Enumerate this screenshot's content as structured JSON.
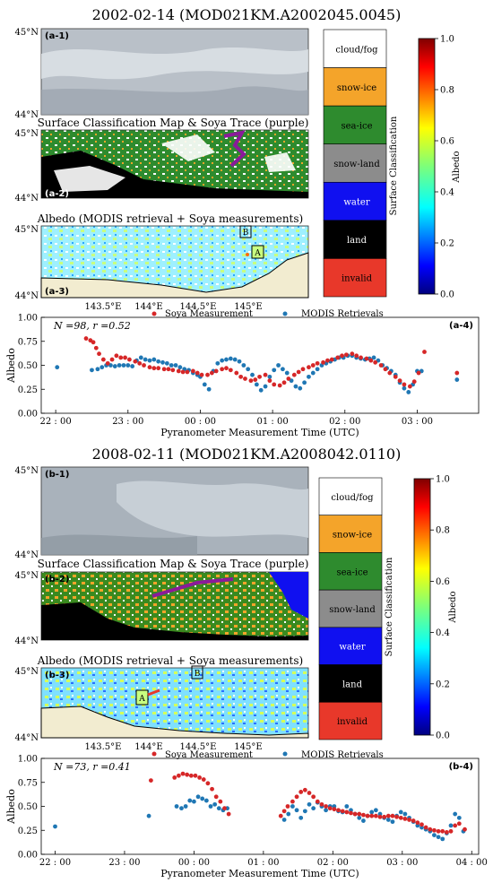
{
  "panel_a": {
    "title": "2002-02-14 (MOD021KM.A2002045.0045)",
    "labels": {
      "a1": "(a-1)",
      "a2": "(a-2)",
      "a3": "(a-3)",
      "a4": "(a-4)"
    },
    "map2_title": "Surface Classification Map & Soya Trace (purple)",
    "map3_title": "Albedo (MODIS retrieval + Soya measurements)",
    "lat_top": "45°N",
    "lat_bottom": "44°N",
    "lon_ticks": [
      "143.5°E",
      "144°E",
      "144.5°E",
      "145°E"
    ],
    "box_a": "A",
    "box_b": "B",
    "stats": "N =98, r =0.52"
  },
  "panel_b": {
    "title": "2008-02-11 (MOD021KM.A2008042.0110)",
    "labels": {
      "b1": "(b-1)",
      "b2": "(b-2)",
      "b3": "(b-3)",
      "b4": "(b-4)"
    },
    "map2_title": "Surface Classification Map & Soya Trace (purple)",
    "map3_title": "Albedo (MODIS retrieval + Soya measurements)",
    "lat_top": "45°N",
    "lat_bottom": "44°N",
    "lon_ticks": [
      "143.5°E",
      "144°E",
      "144.5°E",
      "145°E"
    ],
    "box_a": "A",
    "box_b": "B",
    "stats": "N =73, r =0.41"
  },
  "classification_legend": {
    "title": "Surface Classification",
    "items": [
      {
        "label": "cloud/fog",
        "color": "#ffffff"
      },
      {
        "label": "snow-ice",
        "color": "#f4a42a"
      },
      {
        "label": "sea-ice",
        "color": "#2e8b2e"
      },
      {
        "label": "snow-land",
        "color": "#8c8c8c"
      },
      {
        "label": "water",
        "color": "#1010f0"
      },
      {
        "label": "land",
        "color": "#000000"
      },
      {
        "label": "invalid",
        "color": "#e8382a"
      }
    ]
  },
  "albedo_colorbar": {
    "title": "Albedo",
    "ticks": [
      "0.0",
      "0.2",
      "0.4",
      "0.6",
      "0.8",
      "1.0"
    ]
  },
  "legend": {
    "soya": "Soya Measurement",
    "modis": "MODIS Retrievals",
    "soya_color": "#d62728",
    "modis_color": "#1f77b4"
  },
  "chart_data": [
    {
      "type": "scatter",
      "id": "a-4",
      "xlabel": "Pyranometer Measurement Time (UTC)",
      "ylabel": "Albedo",
      "xticks": [
        "22 : 00",
        "23 : 00",
        "00 : 00",
        "01 : 00",
        "02 : 00",
        "03 : 00"
      ],
      "yticks": [
        "0.00",
        "0.25",
        "0.50",
        "0.75",
        "1.00"
      ],
      "xlim_hours_after_2200": [
        -0.2,
        5.85
      ],
      "ylim": [
        0,
        1
      ],
      "series": [
        {
          "name": "Soya Measurement",
          "x": [
            0.42,
            0.48,
            0.52,
            0.56,
            0.6,
            0.66,
            0.72,
            0.78,
            0.84,
            0.9,
            0.96,
            1.02,
            1.1,
            1.16,
            1.22,
            1.3,
            1.36,
            1.42,
            1.5,
            1.56,
            1.62,
            1.7,
            1.76,
            1.82,
            1.9,
            1.96,
            2.02,
            2.1,
            2.16,
            2.22,
            2.3,
            2.36,
            2.42,
            2.5,
            2.56,
            2.62,
            2.7,
            2.76,
            2.82,
            2.9,
            2.96,
            3.02,
            3.1,
            3.16,
            3.22,
            3.3,
            3.36,
            3.42,
            3.5,
            3.56,
            3.62,
            3.7,
            3.76,
            3.82,
            3.9,
            3.96,
            4.02,
            4.1,
            4.16,
            4.22,
            4.3,
            4.36,
            4.42,
            4.5,
            4.56,
            4.62,
            4.7,
            4.76,
            4.82,
            4.9,
            4.96,
            5.02,
            5.1,
            5.55
          ],
          "y": [
            0.78,
            0.76,
            0.74,
            0.68,
            0.62,
            0.56,
            0.52,
            0.56,
            0.6,
            0.58,
            0.58,
            0.56,
            0.54,
            0.52,
            0.5,
            0.48,
            0.47,
            0.47,
            0.46,
            0.46,
            0.45,
            0.44,
            0.43,
            0.43,
            0.44,
            0.42,
            0.4,
            0.4,
            0.42,
            0.44,
            0.46,
            0.47,
            0.45,
            0.42,
            0.38,
            0.36,
            0.34,
            0.35,
            0.38,
            0.4,
            0.34,
            0.3,
            0.29,
            0.32,
            0.36,
            0.4,
            0.43,
            0.46,
            0.48,
            0.5,
            0.52,
            0.53,
            0.55,
            0.56,
            0.58,
            0.6,
            0.61,
            0.62,
            0.6,
            0.58,
            0.57,
            0.55,
            0.53,
            0.5,
            0.46,
            0.42,
            0.38,
            0.34,
            0.3,
            0.28,
            0.33,
            0.42,
            0.64,
            0.42
          ]
        },
        {
          "name": "MODIS Retrievals",
          "x": [
            0.02,
            0.5,
            0.58,
            0.64,
            0.7,
            0.76,
            0.82,
            0.88,
            0.94,
            1.0,
            1.06,
            1.12,
            1.18,
            1.24,
            1.3,
            1.36,
            1.42,
            1.48,
            1.54,
            1.6,
            1.66,
            1.72,
            1.78,
            1.84,
            1.9,
            1.96,
            2.0,
            2.06,
            2.12,
            2.18,
            2.24,
            2.3,
            2.36,
            2.42,
            2.48,
            2.54,
            2.6,
            2.66,
            2.72,
            2.78,
            2.84,
            2.9,
            2.96,
            3.02,
            3.08,
            3.14,
            3.2,
            3.26,
            3.32,
            3.38,
            3.44,
            3.5,
            3.56,
            3.62,
            3.68,
            3.74,
            3.8,
            3.86,
            3.92,
            3.98,
            4.04,
            4.1,
            4.16,
            4.22,
            4.28,
            4.34,
            4.4,
            4.46,
            4.52,
            4.58,
            4.64,
            4.7,
            4.76,
            4.82,
            4.88,
            4.94,
            5.0,
            5.06,
            5.55
          ],
          "y": [
            0.48,
            0.45,
            0.46,
            0.48,
            0.5,
            0.5,
            0.49,
            0.5,
            0.5,
            0.5,
            0.49,
            0.55,
            0.58,
            0.56,
            0.55,
            0.56,
            0.54,
            0.53,
            0.52,
            0.5,
            0.5,
            0.48,
            0.46,
            0.45,
            0.42,
            0.4,
            0.38,
            0.3,
            0.25,
            0.44,
            0.52,
            0.55,
            0.56,
            0.57,
            0.56,
            0.54,
            0.5,
            0.46,
            0.4,
            0.3,
            0.24,
            0.28,
            0.38,
            0.45,
            0.5,
            0.46,
            0.42,
            0.34,
            0.28,
            0.26,
            0.32,
            0.38,
            0.42,
            0.46,
            0.5,
            0.52,
            0.54,
            0.56,
            0.58,
            0.58,
            0.6,
            0.6,
            0.58,
            0.57,
            0.56,
            0.57,
            0.58,
            0.55,
            0.5,
            0.47,
            0.44,
            0.4,
            0.32,
            0.26,
            0.22,
            0.3,
            0.44,
            0.44,
            0.35
          ]
        }
      ]
    },
    {
      "type": "scatter",
      "id": "b-4",
      "xlabel": "Pyranometer Measurement Time (UTC)",
      "ylabel": "Albedo",
      "xticks": [
        "22 : 00",
        "23 : 00",
        "00 : 00",
        "01 : 00",
        "02 : 00",
        "03 : 00",
        "04 : 00"
      ],
      "yticks": [
        "0.00",
        "0.25",
        "0.50",
        "0.75",
        "1.00"
      ],
      "xlim_hours_after_2200": [
        -0.2,
        6.1
      ],
      "ylim": [
        0,
        1
      ],
      "series": [
        {
          "name": "Soya Measurement",
          "x": [
            1.38,
            1.72,
            1.78,
            1.84,
            1.9,
            1.96,
            2.02,
            2.08,
            2.14,
            2.2,
            2.26,
            2.32,
            2.38,
            2.44,
            2.5,
            3.25,
            3.3,
            3.35,
            3.42,
            3.48,
            3.54,
            3.6,
            3.66,
            3.72,
            3.78,
            3.84,
            3.9,
            3.96,
            4.02,
            4.08,
            4.14,
            4.2,
            4.26,
            4.32,
            4.38,
            4.44,
            4.5,
            4.56,
            4.62,
            4.68,
            4.74,
            4.8,
            4.86,
            4.92,
            4.98,
            5.04,
            5.1,
            5.16,
            5.22,
            5.28,
            5.34,
            5.4,
            5.46,
            5.52,
            5.58,
            5.64,
            5.7,
            5.76,
            5.82,
            5.9
          ],
          "y": [
            0.77,
            0.8,
            0.82,
            0.84,
            0.83,
            0.82,
            0.82,
            0.8,
            0.78,
            0.74,
            0.68,
            0.6,
            0.55,
            0.48,
            0.42,
            0.4,
            0.45,
            0.5,
            0.55,
            0.6,
            0.65,
            0.67,
            0.64,
            0.6,
            0.55,
            0.52,
            0.5,
            0.48,
            0.47,
            0.46,
            0.45,
            0.44,
            0.43,
            0.42,
            0.42,
            0.41,
            0.4,
            0.4,
            0.4,
            0.39,
            0.39,
            0.4,
            0.4,
            0.39,
            0.38,
            0.37,
            0.36,
            0.35,
            0.33,
            0.31,
            0.28,
            0.26,
            0.25,
            0.24,
            0.24,
            0.23,
            0.24,
            0.3,
            0.32,
            0.26
          ]
        },
        {
          "name": "MODIS Retrievals",
          "x": [
            0.0,
            1.35,
            1.75,
            1.82,
            1.88,
            1.94,
            2.0,
            2.06,
            2.12,
            2.18,
            2.24,
            2.3,
            2.36,
            2.42,
            2.48,
            3.3,
            3.36,
            3.42,
            3.48,
            3.54,
            3.6,
            3.66,
            3.72,
            3.78,
            3.84,
            3.9,
            3.96,
            4.02,
            4.08,
            4.14,
            4.2,
            4.26,
            4.32,
            4.38,
            4.44,
            4.5,
            4.56,
            4.62,
            4.68,
            4.74,
            4.8,
            4.86,
            4.92,
            4.98,
            5.04,
            5.1,
            5.16,
            5.22,
            5.28,
            5.34,
            5.4,
            5.46,
            5.52,
            5.58,
            5.64,
            5.7,
            5.76,
            5.82,
            5.88
          ],
          "y": [
            0.29,
            0.4,
            0.5,
            0.48,
            0.5,
            0.56,
            0.55,
            0.6,
            0.58,
            0.56,
            0.5,
            0.52,
            0.48,
            0.46,
            0.48,
            0.36,
            0.42,
            0.5,
            0.46,
            0.38,
            0.45,
            0.52,
            0.48,
            0.54,
            0.5,
            0.46,
            0.5,
            0.5,
            0.45,
            0.44,
            0.5,
            0.46,
            0.42,
            0.38,
            0.35,
            0.4,
            0.44,
            0.46,
            0.42,
            0.38,
            0.36,
            0.34,
            0.4,
            0.44,
            0.42,
            0.38,
            0.34,
            0.3,
            0.28,
            0.26,
            0.24,
            0.2,
            0.18,
            0.16,
            0.22,
            0.3,
            0.42,
            0.38,
            0.24
          ]
        }
      ]
    }
  ]
}
